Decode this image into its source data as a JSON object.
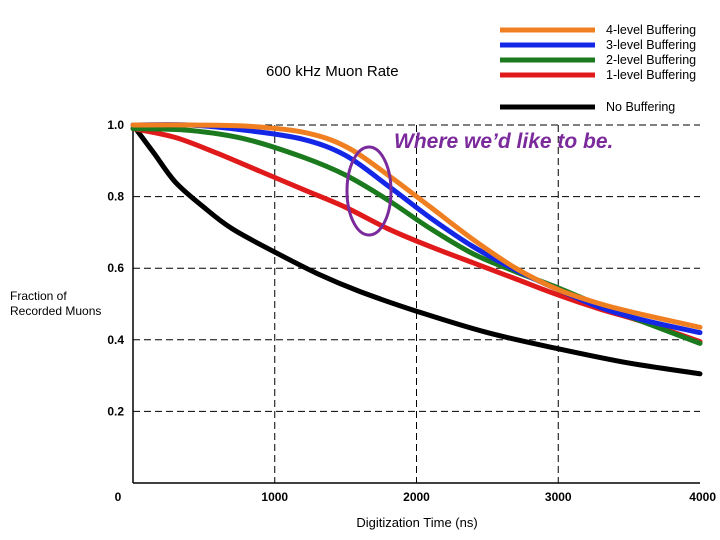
{
  "chart_data": {
    "type": "line",
    "title": "",
    "subtitle": "600 kHz Muon Rate",
    "xlabel": "Digitization Time (ns)",
    "ylabel_lines": [
      "Fraction of",
      "Recorded Muons"
    ],
    "xlim": [
      0,
      4000
    ],
    "ylim": [
      0,
      1.0
    ],
    "x_ticks": [
      "0",
      "1000",
      "2000",
      "3000",
      "4000"
    ],
    "y_ticks": [
      "0.2",
      "0.4",
      "0.6",
      "0.8",
      "1.0"
    ],
    "grid": "dashed",
    "legend_position": "top-right",
    "annotation": "Where we’d like to be.",
    "series": [
      {
        "name": "4-level Buffering",
        "color": "#F07F22",
        "x": [
          0,
          400,
          800,
          1200,
          1500,
          1800,
          2100,
          2400,
          2700,
          3000,
          3300,
          3600,
          4000
        ],
        "y": [
          1.0,
          1.0,
          0.997,
          0.98,
          0.94,
          0.86,
          0.77,
          0.68,
          0.6,
          0.54,
          0.5,
          0.47,
          0.435
        ]
      },
      {
        "name": "3-level Buffering",
        "color": "#1426E6",
        "x": [
          0,
          400,
          800,
          1200,
          1500,
          1800,
          2100,
          2400,
          2700,
          3000,
          3300,
          3600,
          4000
        ],
        "y": [
          1.0,
          1.0,
          0.985,
          0.96,
          0.915,
          0.83,
          0.74,
          0.66,
          0.595,
          0.54,
          0.49,
          0.455,
          0.42
        ]
      },
      {
        "name": "2-level Buffering",
        "color": "#1C7A1E",
        "x": [
          0,
          400,
          800,
          1200,
          1500,
          1800,
          2100,
          2400,
          2700,
          3000,
          3300,
          3600,
          4000
        ],
        "y": [
          0.99,
          0.985,
          0.96,
          0.91,
          0.86,
          0.79,
          0.71,
          0.64,
          0.59,
          0.545,
          0.495,
          0.45,
          0.39
        ]
      },
      {
        "name": "1-level Buffering",
        "color": "#E01A1A",
        "x": [
          0,
          300,
          600,
          900,
          1200,
          1500,
          1800,
          2100,
          2400,
          2700,
          3000,
          3300,
          3600,
          4000
        ],
        "y": [
          0.99,
          0.965,
          0.92,
          0.87,
          0.82,
          0.77,
          0.71,
          0.66,
          0.615,
          0.57,
          0.525,
          0.485,
          0.45,
          0.395
        ]
      },
      {
        "name": "No Buffering",
        "color": "#000000",
        "x": [
          0,
          150,
          300,
          500,
          700,
          1000,
          1300,
          1600,
          2000,
          2500,
          3000,
          3500,
          4000
        ],
        "y": [
          1.0,
          0.92,
          0.84,
          0.77,
          0.71,
          0.645,
          0.585,
          0.535,
          0.48,
          0.42,
          0.375,
          0.335,
          0.305
        ]
      }
    ]
  }
}
